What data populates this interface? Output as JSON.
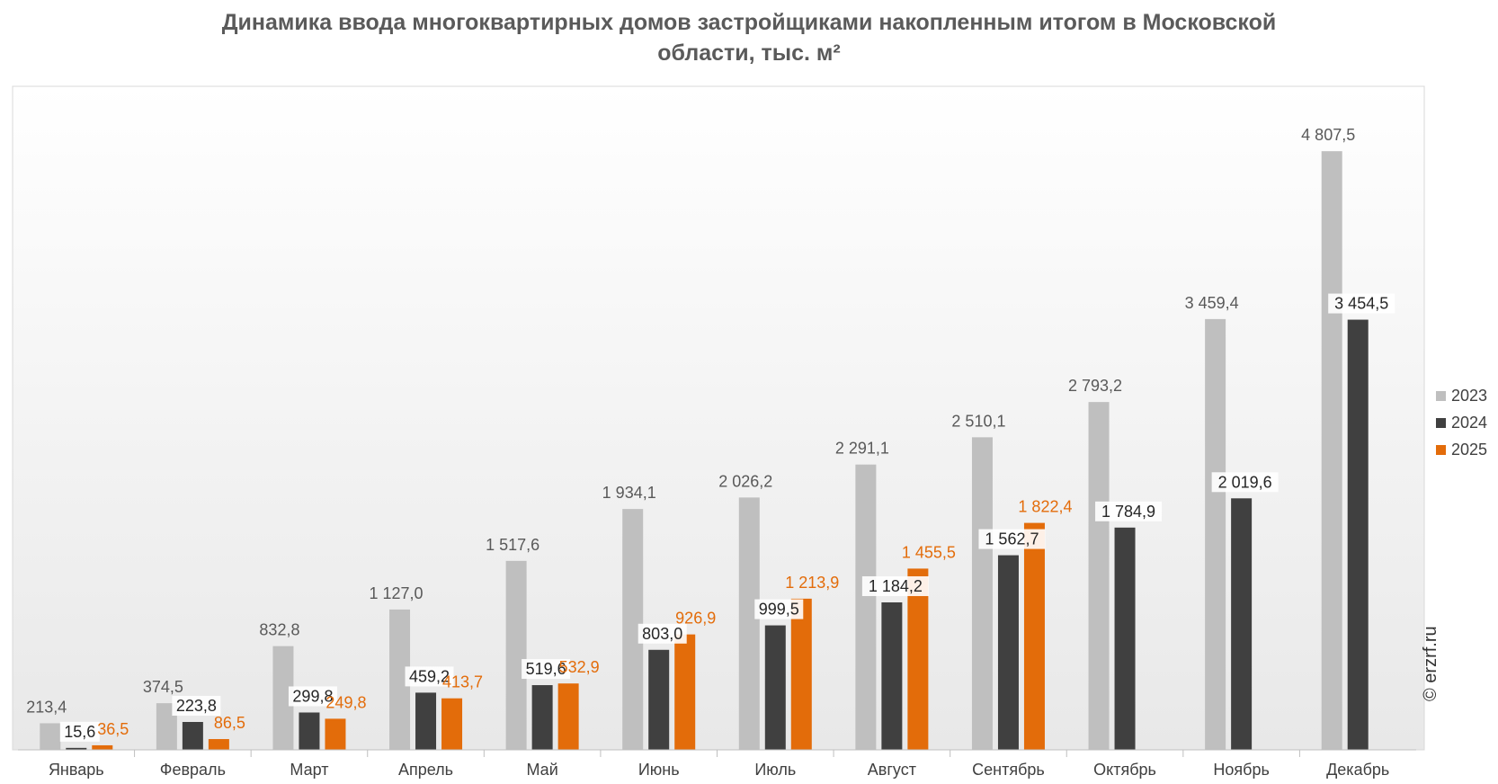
{
  "title_line1": "Динамика ввода многоквартирных домов застройщиками накопленным итогом в Московской",
  "title_line2": "области, тыс. м²",
  "watermark": "© erzrf.ru",
  "chart_data": {
    "type": "bar",
    "categories": [
      "Январь",
      "Февраль",
      "Март",
      "Апрель",
      "Май",
      "Июнь",
      "Июль",
      "Август",
      "Сентябрь",
      "Октябрь",
      "Ноябрь",
      "Декабрь"
    ],
    "series": [
      {
        "name": "2023",
        "color": "#bfbfbf",
        "label_color": "#595959",
        "values": [
          213.4,
          374.5,
          832.8,
          1127.0,
          1517.6,
          1934.1,
          2026.2,
          2291.1,
          2510.1,
          2793.2,
          3459.4,
          4807.5
        ],
        "labels": [
          "213,4",
          "374,5",
          "832,8",
          "1 127,0",
          "1 517,6",
          "1 934,1",
          "2 026,2",
          "2 291,1",
          "2 510,1",
          "2 793,2",
          "3 459,4",
          "4 807,5"
        ]
      },
      {
        "name": "2024",
        "color": "#404040",
        "label_color": "#262626",
        "values": [
          15.6,
          223.8,
          299.8,
          459.2,
          519.6,
          803.0,
          999.5,
          1184.2,
          1562.7,
          1784.9,
          2019.6,
          3454.5
        ],
        "labels": [
          "15,6",
          "223,8",
          "299,8",
          "459,2",
          "519,6",
          "803,0",
          "999,5",
          "1 184,2",
          "1 562,7",
          "1 784,9",
          "2 019,6",
          "3 454,5"
        ]
      },
      {
        "name": "2025",
        "color": "#e36c0a",
        "label_color": "#e36c0a",
        "values": [
          36.5,
          86.5,
          249.8,
          413.7,
          532.9,
          926.9,
          1213.9,
          1455.5,
          1822.4,
          null,
          null,
          null
        ],
        "labels": [
          "36,5",
          "86,5",
          "249,8",
          "413,7",
          "532,9",
          "926,9",
          "1 213,9",
          "1 455,5",
          "1 822,4",
          "",
          "",
          ""
        ]
      }
    ],
    "ylim": [
      0,
      5600
    ],
    "xlabel": "",
    "ylabel": "",
    "legend_position": "right",
    "grid": false
  }
}
